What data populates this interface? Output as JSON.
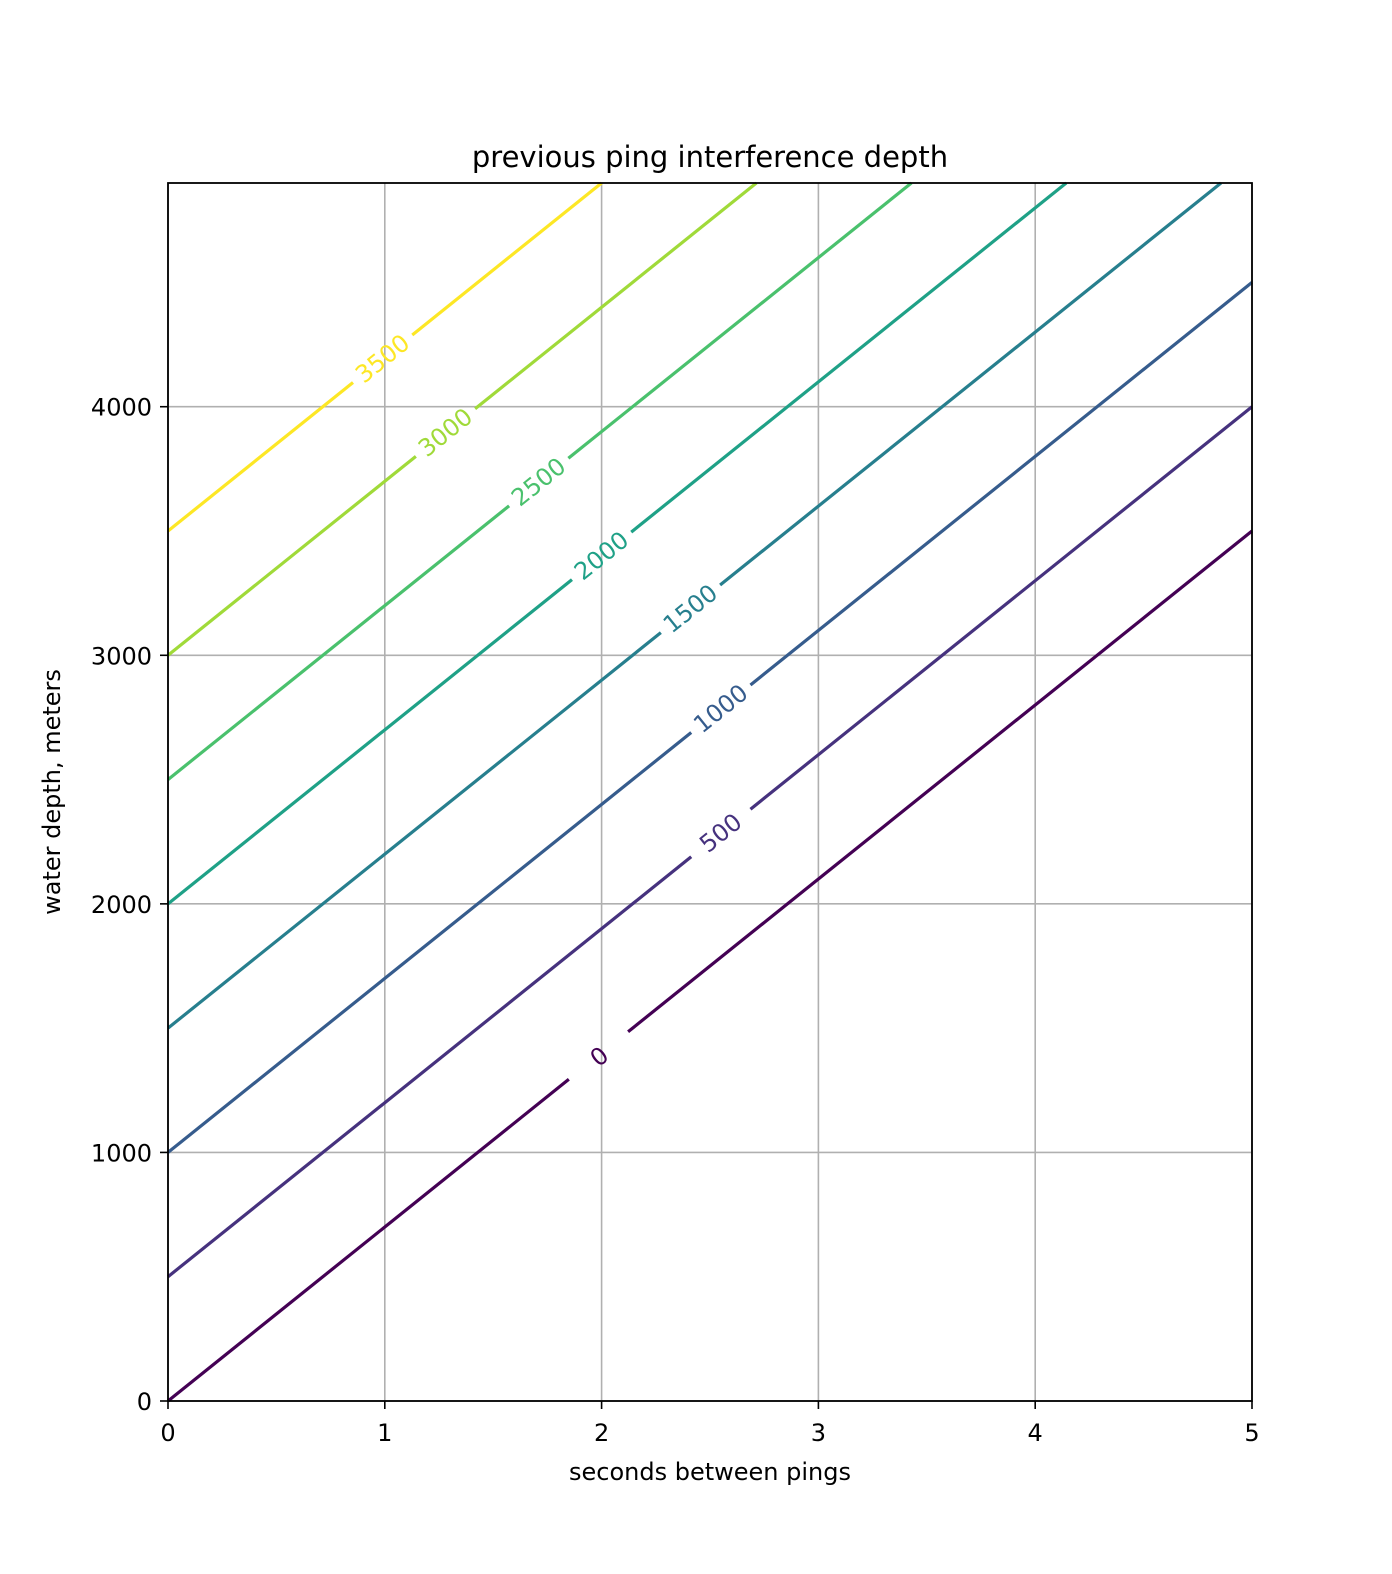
{
  "chart_data": {
    "type": "line",
    "title": "previous ping interference depth",
    "xlabel": "seconds between pings",
    "ylabel": "water depth, meters",
    "xlim": [
      0,
      5
    ],
    "ylim": [
      0,
      4900
    ],
    "xticks": [
      0,
      1,
      2,
      3,
      4,
      5
    ],
    "yticks": [
      0,
      1000,
      2000,
      3000,
      4000
    ],
    "grid": true,
    "contour_model": "depth = 700 * seconds + level",
    "series": [
      {
        "name": "0",
        "color": "#440154",
        "points": [
          [
            0,
            0
          ],
          [
            5,
            3500
          ]
        ],
        "label_at": [
          1.99,
          1385
        ]
      },
      {
        "name": "500",
        "color": "#46327e",
        "points": [
          [
            0,
            500
          ],
          [
            5,
            4000
          ]
        ],
        "label_at": [
          2.55,
          2285
        ]
      },
      {
        "name": "1000",
        "color": "#365c8d",
        "points": [
          [
            0,
            1000
          ],
          [
            5,
            4500
          ]
        ],
        "label_at": [
          2.55,
          2785
        ]
      },
      {
        "name": "1500",
        "color": "#277f8e",
        "points": [
          [
            0,
            1500
          ],
          [
            4.857,
            4900
          ]
        ],
        "label_at": [
          2.41,
          3187
        ]
      },
      {
        "name": "2000",
        "color": "#1fa187",
        "points": [
          [
            0,
            2000
          ],
          [
            4.143,
            4900
          ]
        ],
        "label_at": [
          2.0,
          3400
        ]
      },
      {
        "name": "2500",
        "color": "#4ac16d",
        "points": [
          [
            0,
            2500
          ],
          [
            3.429,
            4900
          ]
        ],
        "label_at": [
          1.71,
          3697
        ]
      },
      {
        "name": "3000",
        "color": "#a0da39",
        "points": [
          [
            0,
            3000
          ],
          [
            2.714,
            4900
          ]
        ],
        "label_at": [
          1.28,
          3896
        ]
      },
      {
        "name": "3500",
        "color": "#fde725",
        "points": [
          [
            0,
            3500
          ],
          [
            2.0,
            4900
          ]
        ],
        "label_at": [
          0.99,
          4193
        ]
      }
    ]
  }
}
